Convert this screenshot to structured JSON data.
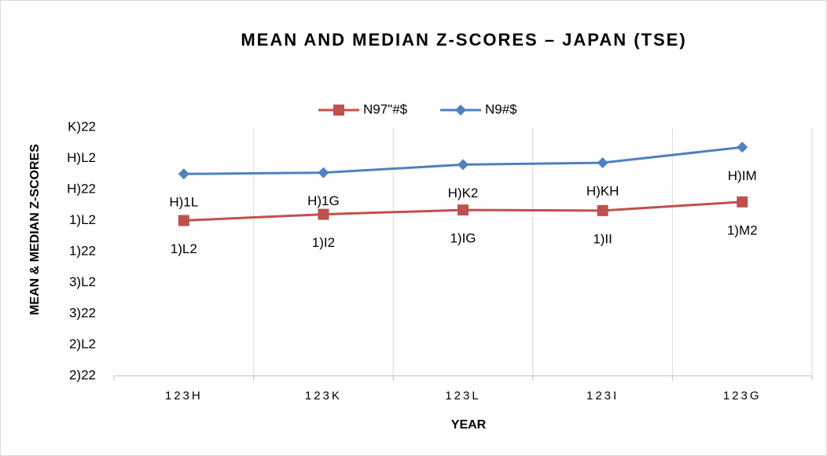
{
  "chart_data": {
    "type": "line",
    "title": "MEAN AND MEDIAN Z-SCORES – JAPAN (TSE)",
    "x_label": "YEAR",
    "y_label": "MEAN & MEDIAN Z-SCORES",
    "categories": [
      "123H",
      "123K",
      "123L",
      "123I",
      "123G"
    ],
    "series": [
      {
        "name": "N97\"#$",
        "color": "#c0504d",
        "marker": "square",
        "values": [
          2.5,
          2.6,
          2.67,
          2.66,
          2.8
        ],
        "value_labels": [
          "1)L2",
          "1)I2",
          "1)IG",
          "1)II",
          "1)M2"
        ]
      },
      {
        "name": "N9#$",
        "color": "#4f81bd",
        "marker": "diamond",
        "values": [
          3.25,
          3.27,
          3.4,
          3.43,
          3.68
        ],
        "value_labels": [
          "H)1L",
          "H)1G",
          "H)K2",
          "H)KH",
          "H)IM"
        ]
      }
    ],
    "ylim": [
      0,
      4
    ],
    "yticks": [
      {
        "value": 0,
        "label": "2)22"
      },
      {
        "value": 0.5,
        "label": "2)L2"
      },
      {
        "value": 1,
        "label": "3)22"
      },
      {
        "value": 1.5,
        "label": "3)L2"
      },
      {
        "value": 2,
        "label": "1)22"
      },
      {
        "value": 2.5,
        "label": "1)L2"
      },
      {
        "value": 3,
        "label": "H)22"
      },
      {
        "value": 3.5,
        "label": "H)L2"
      },
      {
        "value": 4,
        "label": "K)22"
      }
    ],
    "grid": false,
    "legend": "top"
  }
}
